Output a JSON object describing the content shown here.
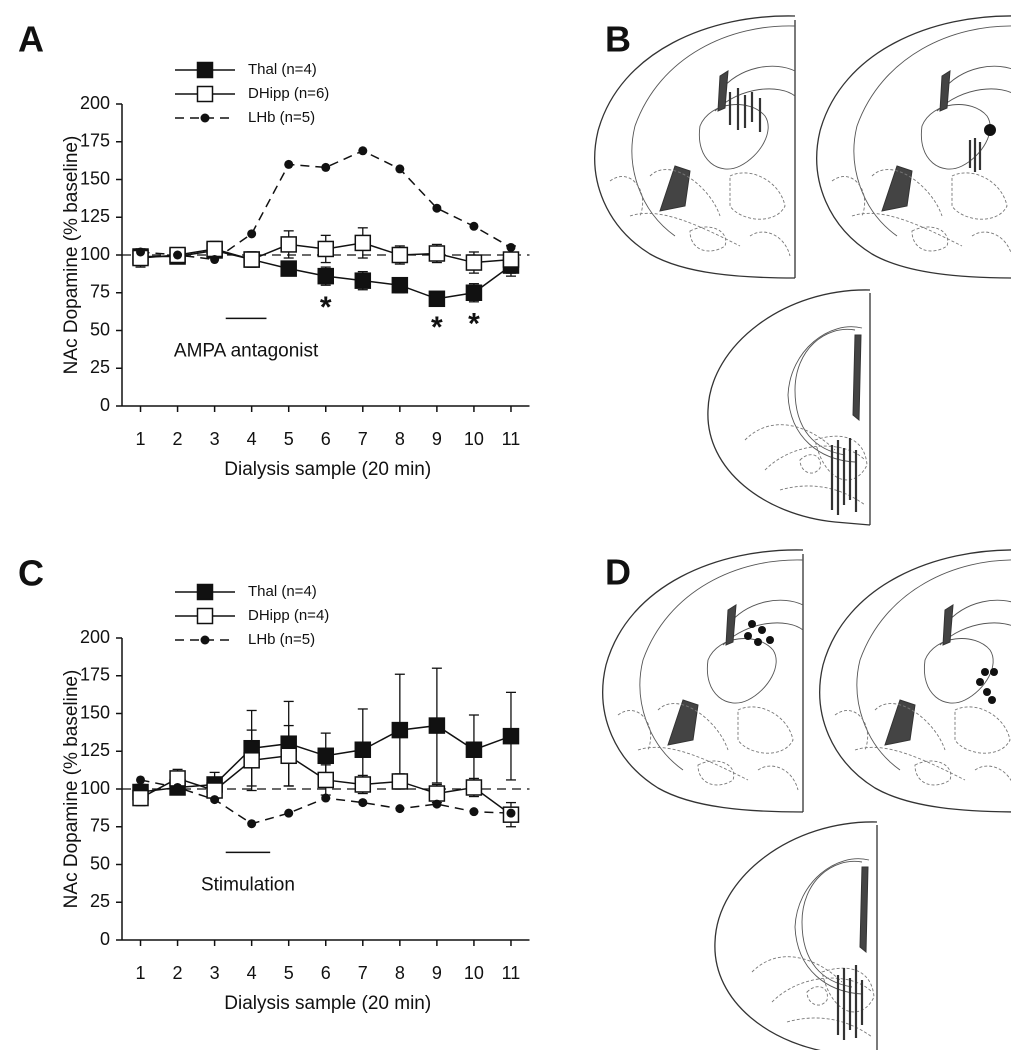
{
  "chart_data": [
    {
      "type": "line",
      "panel_label": "A",
      "y_label": "NAc Dopamine (% baseline)",
      "x_label": "Dialysis sample (20 min)",
      "x": [
        1,
        2,
        3,
        4,
        5,
        6,
        7,
        8,
        9,
        10,
        11
      ],
      "xlim": [
        0.5,
        11.5
      ],
      "xticks": [
        1,
        2,
        3,
        4,
        5,
        6,
        7,
        8,
        9,
        10,
        11
      ],
      "ylim": [
        0,
        200
      ],
      "yticks": [
        0,
        25,
        50,
        75,
        100,
        125,
        150,
        175,
        200
      ],
      "reference_line": 100,
      "series": [
        {
          "name": "Thal (n=4)",
          "color": "#111111",
          "marker": "filled-square",
          "dashed": false,
          "values": [
            99,
            99,
            103,
            97,
            91,
            86,
            83,
            80,
            71,
            75,
            93
          ],
          "errors": [
            5,
            4,
            4,
            5,
            4,
            6,
            6,
            5,
            4,
            6,
            7
          ]
        },
        {
          "name": "DHipp (n=6)",
          "color": "#111111",
          "marker": "open-square",
          "dashed": false,
          "values": [
            98,
            100,
            104,
            97,
            107,
            104,
            108,
            100,
            101,
            95,
            97
          ],
          "errors": [
            6,
            4,
            5,
            5,
            9,
            9,
            10,
            6,
            6,
            7,
            9
          ]
        },
        {
          "name": "LHb (n=5)",
          "color": "#111111",
          "marker": "dot",
          "dashed": true,
          "values": [
            102,
            100,
            97,
            114,
            160,
            158,
            169,
            157,
            131,
            119,
            105
          ]
        }
      ],
      "treatment": {
        "label": "AMPA antagonist",
        "start": 3.3,
        "end": 4.4
      },
      "significance": [
        {
          "x": 6,
          "label": "*"
        },
        {
          "x": 9,
          "label": "*"
        },
        {
          "x": 10,
          "label": "*"
        }
      ]
    },
    {
      "type": "line",
      "panel_label": "C",
      "y_label": "NAc Dopamine (% baseline)",
      "x_label": "Dialysis sample (20 min)",
      "x": [
        1,
        2,
        3,
        4,
        5,
        6,
        7,
        8,
        9,
        10,
        11
      ],
      "xlim": [
        0.5,
        11.5
      ],
      "xticks": [
        1,
        2,
        3,
        4,
        5,
        6,
        7,
        8,
        9,
        10,
        11
      ],
      "ylim": [
        0,
        200
      ],
      "yticks": [
        0,
        25,
        50,
        75,
        100,
        125,
        150,
        175,
        200
      ],
      "reference_line": 100,
      "series": [
        {
          "name": "Thal (n=4)",
          "color": "#111111",
          "marker": "filled-square",
          "dashed": false,
          "values": [
            98,
            101,
            103,
            127,
            130,
            122,
            126,
            139,
            142,
            126,
            135
          ],
          "errors": [
            5,
            4,
            8,
            25,
            28,
            15,
            27,
            37,
            38,
            23,
            29
          ]
        },
        {
          "name": "DHipp (n=4)",
          "color": "#111111",
          "marker": "open-square",
          "dashed": false,
          "values": [
            94,
            107,
            99,
            119,
            122,
            106,
            103,
            105,
            97,
            101,
            83
          ],
          "errors": [
            5,
            6,
            5,
            20,
            20,
            10,
            6,
            5,
            6,
            6,
            8
          ]
        },
        {
          "name": "LHb (n=5)",
          "color": "#111111",
          "marker": "dot",
          "dashed": true,
          "values": [
            106,
            101,
            93,
            77,
            84,
            94,
            91,
            87,
            90,
            85,
            84
          ]
        }
      ],
      "treatment": {
        "label": "Stimulation",
        "start": 3.3,
        "end": 4.5
      }
    }
  ],
  "figure_panels": [
    "B",
    "D"
  ]
}
